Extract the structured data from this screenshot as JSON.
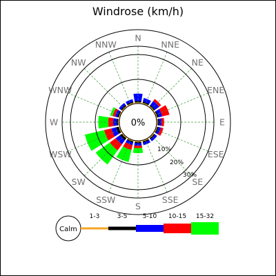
{
  "chart_data": {
    "type": "windrose",
    "title": "Windrose (km/h)",
    "center_label": "0%",
    "ring_labels": [
      "10%",
      "20%",
      "30%"
    ],
    "directions": [
      "N",
      "NNE",
      "NE",
      "ENE",
      "E",
      "ESE",
      "SE",
      "SSE",
      "S",
      "SSW",
      "SW",
      "WSW",
      "W",
      "WNW",
      "NW",
      "NNW"
    ],
    "speed_bins": [
      "1-3",
      "3-5",
      "5-10",
      "10-15",
      "15-32"
    ],
    "bin_colors": [
      "#f5a623",
      "#000000",
      "#0000ff",
      "#ff0000",
      "#00ff00"
    ],
    "calm_label": "Calm",
    "series": [
      {
        "name": "1-3",
        "values": [
          0.5,
          0.5,
          0.5,
          0.5,
          0.5,
          0.5,
          0.5,
          0.5,
          0.5,
          0.5,
          0.5,
          0.5,
          0.5,
          0.5,
          0.5,
          0.5
        ]
      },
      {
        "name": "3-5",
        "values": [
          0.5,
          0.5,
          0.5,
          0.5,
          0.5,
          0.5,
          0.5,
          0.5,
          0.5,
          0.5,
          1,
          1,
          0.5,
          0.5,
          0.5,
          0.5
        ]
      },
      {
        "name": "5-10",
        "values": [
          3,
          1.5,
          2,
          1.5,
          1,
          1,
          1,
          1,
          1,
          1,
          2,
          2,
          1.5,
          1,
          1,
          1
        ]
      },
      {
        "name": "10-15",
        "values": [
          0,
          0,
          1,
          3,
          1,
          1,
          0,
          0,
          1,
          2,
          3,
          3,
          2,
          1,
          0,
          0
        ]
      },
      {
        "name": "15-32",
        "values": [
          0,
          0,
          0,
          0,
          0,
          0,
          0,
          0,
          2,
          5,
          7,
          8,
          4,
          1,
          0,
          0
        ]
      }
    ]
  }
}
